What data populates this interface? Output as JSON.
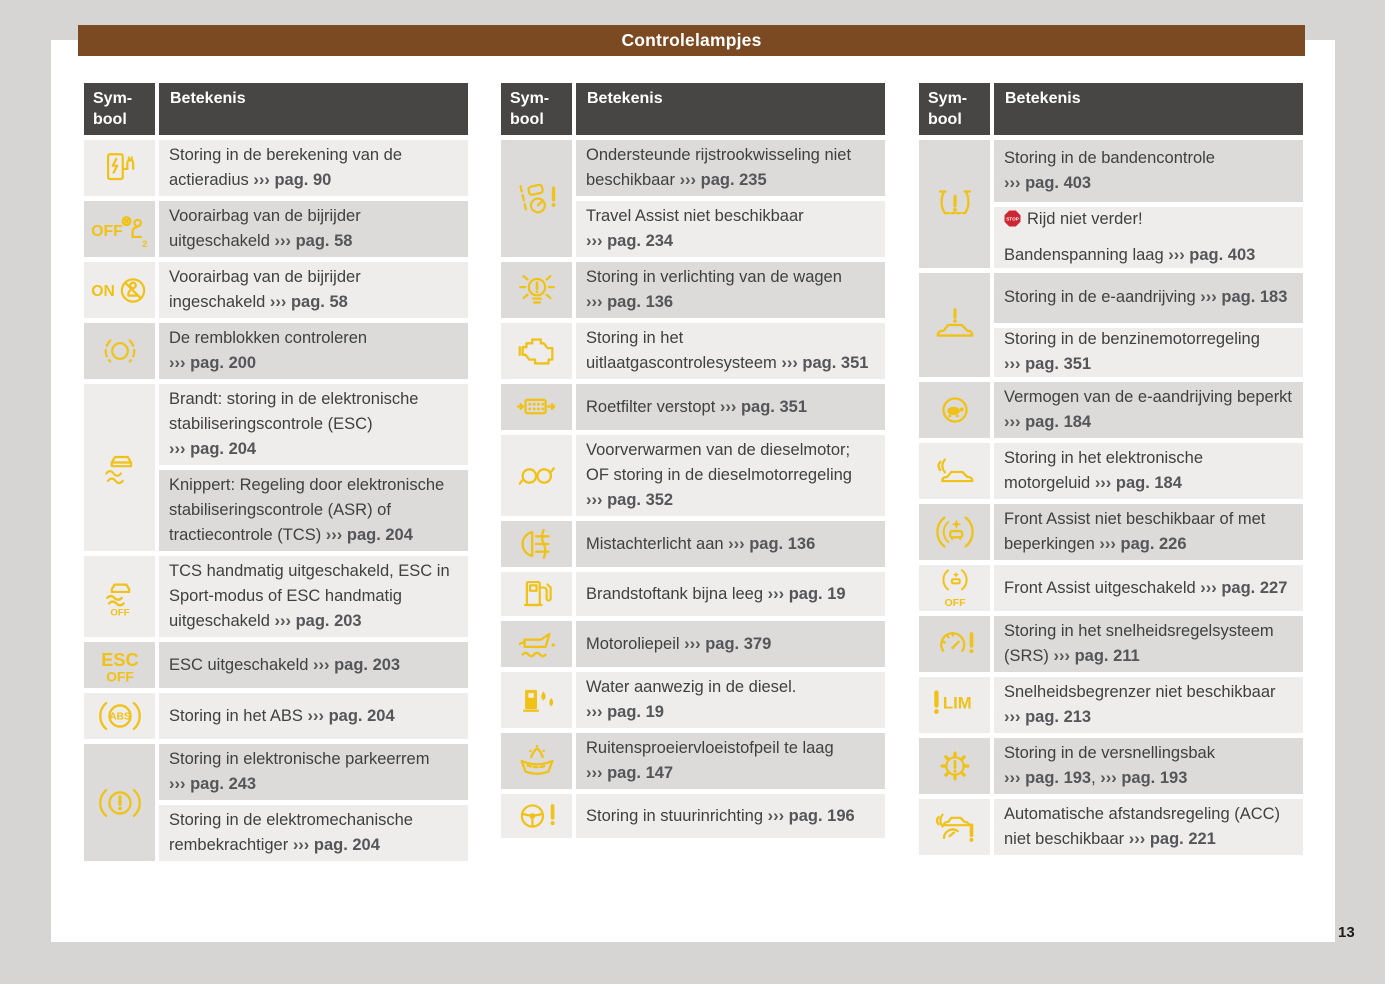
{
  "title": "Controlelampjes",
  "page_number": "13",
  "colors": {
    "canvas_bg": "#D6D5D3",
    "page_bg": "#FFFFFF",
    "title_bar_brown": "#7B4A23",
    "table_header_dark": "#474645",
    "row_light": "#EEEDEB",
    "row_dark": "#DCDBD9",
    "icon_yellow": "#F0C117",
    "stop_red": "#CE2733",
    "text": "#3F4040",
    "ref_text": "#55565A"
  },
  "tables": [
    {
      "header": {
        "symbool": [
          "Sym-",
          "bool"
        ],
        "betekenis": "Betekenis"
      },
      "rows": [
        {
          "icon": "ev-range-icon",
          "cells": [
            {
              "shade": "light",
              "lines": [
                {
                  "text": "Storing in de berekening van de actieradius ››› pag. 90"
                }
              ]
            }
          ]
        },
        {
          "icon": "airbag-off-icon",
          "cells": [
            {
              "shade": "dark",
              "lines": [
                {
                  "text": "Voorairbag van de bijrijder uitgeschakeld ››› pag. 58"
                }
              ]
            }
          ]
        },
        {
          "icon": "airbag-on-icon",
          "cells": [
            {
              "shade": "light",
              "lines": [
                {
                  "text": "Voorairbag van de bijrijder ingeschakeld ››› pag. 58"
                }
              ]
            }
          ]
        },
        {
          "icon": "brake-pads-icon",
          "cells": [
            {
              "shade": "dark",
              "lines": [
                {
                  "text": "De remblokken controleren ››› pag. 200"
                }
              ]
            }
          ]
        },
        {
          "icon": "esc-icon",
          "cells": [
            {
              "shade": "light",
              "lines": [
                {
                  "text": "Brandt: storing in de elektronische stabiliseringscontrole (ESC) ››› pag. 204"
                }
              ]
            },
            {
              "shade": "dark",
              "lines": [
                {
                  "text": "Knippert: Regeling door elektronische stabiliseringscontrole (ASR) of tractiecontrole (TCS) ››› pag. 204"
                }
              ]
            }
          ]
        },
        {
          "icon": "esc-off-icon",
          "cells": [
            {
              "shade": "light",
              "lines": [
                {
                  "text": "TCS handmatig uitgeschakeld, ESC in Sport-modus of ESC handmatig uitgeschakeld ››› pag. 203"
                }
              ]
            }
          ]
        },
        {
          "icon": "esc-off-text-icon",
          "cells": [
            {
              "shade": "dark",
              "lines": [
                {
                  "text": "ESC uitgeschakeld ››› pag. 203"
                }
              ]
            }
          ]
        },
        {
          "icon": "abs-icon",
          "cells": [
            {
              "shade": "light",
              "lines": [
                {
                  "text": "Storing in het ABS ››› pag. 204"
                }
              ]
            }
          ]
        },
        {
          "icon": "brake-warning-icon",
          "cells": [
            {
              "shade": "dark",
              "lines": [
                {
                  "text": "Storing in elektronische parkeerrem ››› pag. 243"
                }
              ]
            },
            {
              "shade": "light",
              "lines": [
                {
                  "text": "Storing in de elektromechanische rembekrachtiger ››› pag. 204"
                }
              ]
            }
          ]
        }
      ]
    },
    {
      "header": {
        "symbool": [
          "Sym-",
          "bool"
        ],
        "betekenis": "Betekenis"
      },
      "rows": [
        {
          "icon": "lane-change-assist-icon",
          "cells": [
            {
              "shade": "dark",
              "lines": [
                {
                  "text": "Ondersteunde rijstrookwisseling niet beschikbaar ››› pag. 235"
                }
              ]
            },
            {
              "shade": "light",
              "lines": [
                {
                  "text": "Travel Assist niet beschikbaar ››› pag. 234"
                }
              ]
            }
          ]
        },
        {
          "icon": "light-fault-icon",
          "cells": [
            {
              "shade": "dark",
              "lines": [
                {
                  "text": "Storing in verlichting van de wagen ››› pag. 136"
                }
              ]
            }
          ]
        },
        {
          "icon": "check-engine-icon",
          "cells": [
            {
              "shade": "light",
              "lines": [
                {
                  "text": "Storing in het uitlaatgascontrolesysteem ››› pag. 351"
                }
              ]
            }
          ]
        },
        {
          "icon": "particulate-filter-icon",
          "cells": [
            {
              "shade": "dark",
              "lines": [
                {
                  "text": "Roetfilter verstopt ››› pag. 351"
                }
              ]
            }
          ]
        },
        {
          "icon": "glow-plug-icon",
          "cells": [
            {
              "shade": "light",
              "lines": [
                {
                  "text": "Voorverwarmen van de dieselmotor; OF storing in de dieselmotorregeling ››› pag. 352"
                }
              ]
            }
          ]
        },
        {
          "icon": "rear-fog-light-icon",
          "cells": [
            {
              "shade": "dark",
              "lines": [
                {
                  "text": "Mistachterlicht aan ››› pag. 136"
                }
              ]
            }
          ]
        },
        {
          "icon": "fuel-pump-icon",
          "cells": [
            {
              "shade": "light",
              "lines": [
                {
                  "text": "Brandstoftank bijna leeg ››› pag. 19"
                }
              ]
            }
          ]
        },
        {
          "icon": "oil-can-icon",
          "cells": [
            {
              "shade": "dark",
              "lines": [
                {
                  "text": "Motoroliepeil ››› pag. 379"
                }
              ]
            }
          ]
        },
        {
          "icon": "water-in-fuel-icon",
          "cells": [
            {
              "shade": "light",
              "lines": [
                {
                  "text": "Water aanwezig in de diesel. ››› pag. 19"
                }
              ]
            }
          ]
        },
        {
          "icon": "washer-fluid-icon",
          "cells": [
            {
              "shade": "dark",
              "lines": [
                {
                  "text": "Ruitensproeiervloeistofpeil te laag ››› pag. 147"
                }
              ]
            }
          ]
        },
        {
          "icon": "steering-fault-icon",
          "cells": [
            {
              "shade": "light",
              "lines": [
                {
                  "text": "Storing in stuurinrichting ››› pag. 196"
                }
              ]
            }
          ]
        }
      ]
    },
    {
      "header": {
        "symbool": [
          "Sym-",
          "bool"
        ],
        "betekenis": "Betekenis"
      },
      "rows": [
        {
          "icon": "tpms-icon",
          "cells": [
            {
              "shade": "dark",
              "lines": [
                {
                  "text": "Storing in de bandencontrole ››› pag. 403"
                }
              ]
            },
            {
              "shade": "light",
              "lines": [
                {
                  "text": "Rijd niet verder!",
                  "icon": "stop-icon"
                },
                {
                  "text": "Bandenspanning laag ››› pag. 403"
                }
              ]
            }
          ]
        },
        {
          "icon": "e-drive-fault-icon",
          "cells": [
            {
              "shade": "dark",
              "lines": [
                {
                  "text": "Storing in de e-aandrijving ››› pag. 183"
                }
              ]
            },
            {
              "shade": "light",
              "lines": [
                {
                  "text": "Storing in de benzinemotorregeling ››› pag. 351"
                }
              ]
            }
          ]
        },
        {
          "icon": "power-limited-icon",
          "cells": [
            {
              "shade": "dark",
              "lines": [
                {
                  "text": "Vermogen van de e-aandrijving beperkt ››› pag. 184"
                }
              ]
            }
          ]
        },
        {
          "icon": "engine-sound-icon",
          "cells": [
            {
              "shade": "light",
              "lines": [
                {
                  "text": "Storing in het elektronische motorgeluid ››› pag. 184"
                }
              ]
            }
          ]
        },
        {
          "icon": "front-assist-icon",
          "cells": [
            {
              "shade": "dark",
              "lines": [
                {
                  "text": "Front Assist niet beschikbaar of met beperkingen ››› pag. 226"
                }
              ]
            }
          ]
        },
        {
          "icon": "front-assist-off-icon",
          "cells": [
            {
              "shade": "light",
              "lines": [
                {
                  "text": "Front Assist uitgeschakeld ››› pag. 227"
                }
              ]
            }
          ]
        },
        {
          "icon": "cruise-control-fault-icon",
          "cells": [
            {
              "shade": "dark",
              "lines": [
                {
                  "text": "Storing in het snelheidsregelsysteem (SRS) ››› pag. 211"
                }
              ]
            }
          ]
        },
        {
          "icon": "speed-limiter-icon",
          "cells": [
            {
              "shade": "light",
              "lines": [
                {
                  "text": "Snelheidsbegrenzer niet beschikbaar ››› pag. 213"
                }
              ]
            }
          ]
        },
        {
          "icon": "gearbox-fault-icon",
          "cells": [
            {
              "shade": "dark",
              "lines": [
                {
                  "text": "Storing in de versnellingsbak ››› pag. 193, ››› pag. 193"
                }
              ]
            }
          ]
        },
        {
          "icon": "acc-icon",
          "cells": [
            {
              "shade": "light",
              "lines": [
                {
                  "text": "Automatische afstandsregeling (ACC) niet beschikbaar ››› pag. 221"
                }
              ]
            }
          ]
        }
      ]
    }
  ]
}
